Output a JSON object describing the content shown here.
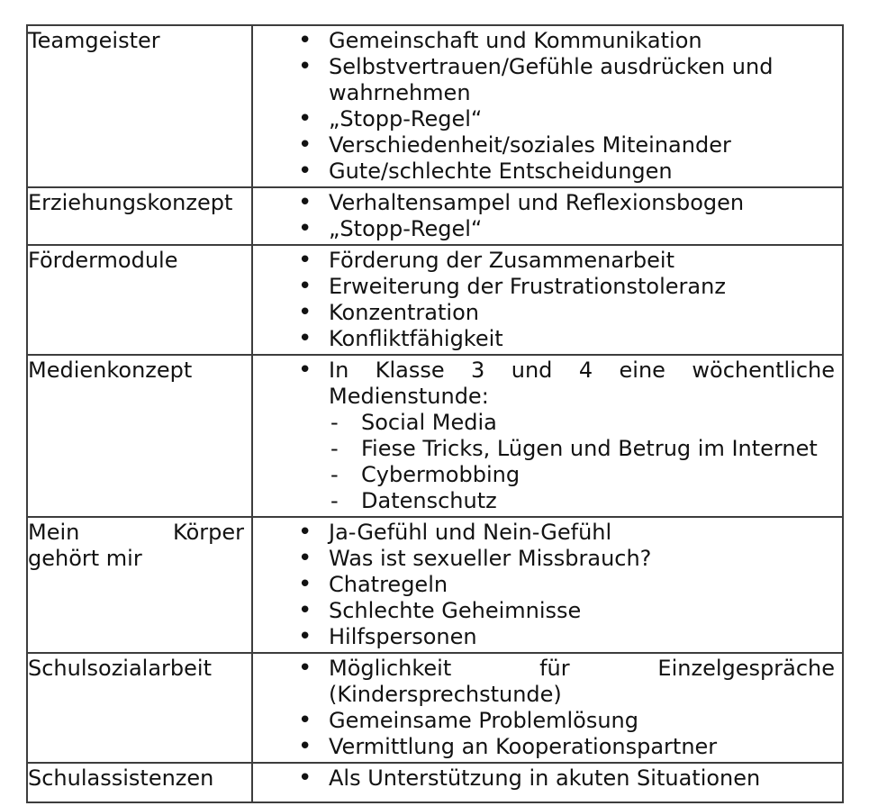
{
  "page": {
    "background_color": "#ffffff",
    "text_color": "#121212",
    "border_color": "#3d3d3d"
  },
  "table": {
    "marker_glyphs": {
      "bullet": "•",
      "dash": "-"
    },
    "rows": [
      {
        "label": {
          "lines": [
            {
              "text": "Teamgeister"
            }
          ]
        },
        "items": [
          {
            "marker": "bullet",
            "lines": [
              {
                "text": "Gemeinschaft und Kommunikation"
              }
            ]
          },
          {
            "marker": "bullet",
            "lines": [
              {
                "text": "Selbstvertrauen/Gefühle ausdrücken und"
              },
              {
                "text": "wahrnehmen"
              }
            ]
          },
          {
            "marker": "bullet",
            "lines": [
              {
                "text": "„Stopp-Regel“"
              }
            ]
          },
          {
            "marker": "bullet",
            "lines": [
              {
                "text": "Verschiedenheit/soziales Miteinander"
              }
            ]
          },
          {
            "marker": "bullet",
            "lines": [
              {
                "text": "Gute/schlechte Entscheidungen"
              }
            ]
          }
        ]
      },
      {
        "label": {
          "lines": [
            {
              "text": "Erziehungskonzept"
            }
          ]
        },
        "items": [
          {
            "marker": "bullet",
            "lines": [
              {
                "text": "Verhaltensampel und Reflexionsbogen"
              }
            ]
          },
          {
            "marker": "bullet",
            "lines": [
              {
                "text": "„Stopp-Regel“"
              }
            ]
          }
        ]
      },
      {
        "label": {
          "lines": [
            {
              "text": "Fördermodule"
            }
          ]
        },
        "items": [
          {
            "marker": "bullet",
            "lines": [
              {
                "text": "Förderung der Zusammenarbeit"
              }
            ]
          },
          {
            "marker": "bullet",
            "lines": [
              {
                "text": "Erweiterung der Frustrationstoleranz"
              }
            ]
          },
          {
            "marker": "bullet",
            "lines": [
              {
                "text": "Konzentration"
              }
            ]
          },
          {
            "marker": "bullet",
            "lines": [
              {
                "text": "Konfliktfähigkeit"
              }
            ]
          }
        ]
      },
      {
        "label": {
          "lines": [
            {
              "text": "Medienkonzept"
            }
          ]
        },
        "items": [
          {
            "marker": "bullet",
            "lines": [
              {
                "text": "In Klasse 3 und 4 eine wöchentliche",
                "justify": true
              },
              {
                "text": "Medienstunde:"
              }
            ]
          },
          {
            "marker": "dash",
            "lines": [
              {
                "text": "Social Media"
              }
            ]
          },
          {
            "marker": "dash",
            "lines": [
              {
                "text": "Fiese Tricks, Lügen und Betrug im Internet"
              }
            ]
          },
          {
            "marker": "dash",
            "lines": [
              {
                "text": "Cybermobbing"
              }
            ]
          },
          {
            "marker": "dash",
            "lines": [
              {
                "text": "Datenschutz"
              }
            ]
          }
        ]
      },
      {
        "label": {
          "lines": [
            {
              "text": "Mein Körper",
              "justify": true
            },
            {
              "text": "gehört mir"
            }
          ]
        },
        "items": [
          {
            "marker": "bullet",
            "lines": [
              {
                "text": "Ja-Gefühl und Nein-Gefühl"
              }
            ]
          },
          {
            "marker": "bullet",
            "lines": [
              {
                "text": "Was ist sexueller Missbrauch?"
              }
            ]
          },
          {
            "marker": "bullet",
            "lines": [
              {
                "text": "Chatregeln"
              }
            ]
          },
          {
            "marker": "bullet",
            "lines": [
              {
                "text": "Schlechte Geheimnisse"
              }
            ]
          },
          {
            "marker": "bullet",
            "lines": [
              {
                "text": "Hilfspersonen"
              }
            ]
          }
        ]
      },
      {
        "label": {
          "lines": [
            {
              "text": "Schulsozialarbeit"
            }
          ]
        },
        "items": [
          {
            "marker": "bullet",
            "lines": [
              {
                "text": "Möglichkeit für Einzelgespräche",
                "justify": true
              },
              {
                "text": "(Kindersprechstunde)"
              }
            ]
          },
          {
            "marker": "bullet",
            "lines": [
              {
                "text": "Gemeinsame Problemlösung"
              }
            ]
          },
          {
            "marker": "bullet",
            "lines": [
              {
                "text": "Vermittlung an Kooperationspartner"
              }
            ]
          }
        ]
      },
      {
        "label": {
          "lines": [
            {
              "text": "Schulassistenzen"
            }
          ]
        },
        "items": [
          {
            "marker": "bullet",
            "lines": [
              {
                "text": "Als Unterstützung in akuten Situationen"
              }
            ]
          }
        ]
      }
    ]
  }
}
